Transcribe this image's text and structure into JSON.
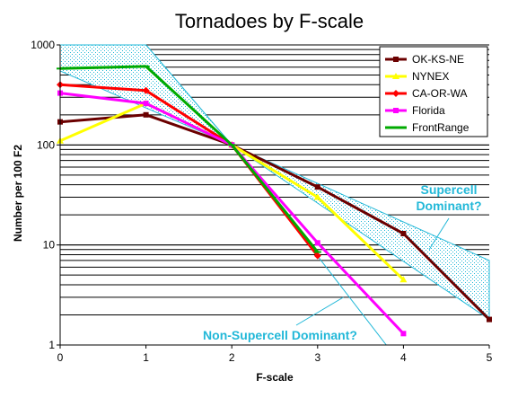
{
  "chart_data": {
    "type": "line",
    "title": "Tornadoes by F-scale",
    "xlabel": "F-scale",
    "ylabel": "Number per 100 F2",
    "y_scale": "log",
    "xlim": [
      0,
      5
    ],
    "ylim": [
      1,
      1000
    ],
    "x_ticks": [
      "0",
      "1",
      "2",
      "3",
      "4",
      "5"
    ],
    "y_ticks": [
      "1",
      "10",
      "100",
      "1000"
    ],
    "grid": "horizontal at every log minor tick",
    "legend_position": "top-right",
    "series": [
      {
        "name": "OK-KS-NE",
        "color": "#6b0000",
        "marker": "square",
        "x": [
          0,
          1,
          2,
          3,
          4,
          5
        ],
        "y": [
          170,
          200,
          100,
          38,
          13,
          1.8
        ]
      },
      {
        "name": "NYNEX",
        "color": "#ffff00",
        "marker": "triangle",
        "x": [
          0,
          1,
          2,
          3,
          4
        ],
        "y": [
          110,
          260,
          100,
          30,
          4.5
        ]
      },
      {
        "name": "CA-OR-WA",
        "color": "#ff0000",
        "marker": "diamond",
        "x": [
          0,
          1,
          2,
          3
        ],
        "y": [
          400,
          350,
          100,
          7.8
        ]
      },
      {
        "name": "Florida",
        "color": "#ff00ff",
        "marker": "square",
        "x": [
          0,
          1,
          2,
          3,
          4
        ],
        "y": [
          330,
          260,
          100,
          10.5,
          1.3
        ]
      },
      {
        "name": "FrontRange",
        "color": "#00aa00",
        "marker": "dash",
        "x": [
          0,
          1,
          2,
          3
        ],
        "y": [
          580,
          610,
          100,
          8.5
        ]
      }
    ],
    "envelopes": [
      {
        "name": "supercell",
        "color": "#22b8d8",
        "upper": [
          [
            1,
            1000
          ],
          [
            2,
            100
          ],
          [
            5,
            7
          ]
        ],
        "lower": [
          [
            2,
            100
          ],
          [
            5,
            1.8
          ]
        ]
      },
      {
        "name": "non-supercell",
        "color": "#22b8d8",
        "upper": [
          [
            0,
            1000
          ],
          [
            1,
            1000
          ],
          [
            2,
            100
          ]
        ],
        "lower": [
          [
            0,
            1000
          ],
          [
            0,
            550
          ],
          [
            2,
            100
          ],
          [
            3.8,
            1
          ]
        ]
      }
    ],
    "annotations": [
      {
        "text_lines": [
          "Supercell",
          "Dominant?"
        ],
        "points_to": [
          4.3,
          9
        ]
      },
      {
        "text_lines": [
          "Non-Supercell Dominant?"
        ],
        "points_to": [
          3.3,
          3
        ]
      }
    ]
  }
}
